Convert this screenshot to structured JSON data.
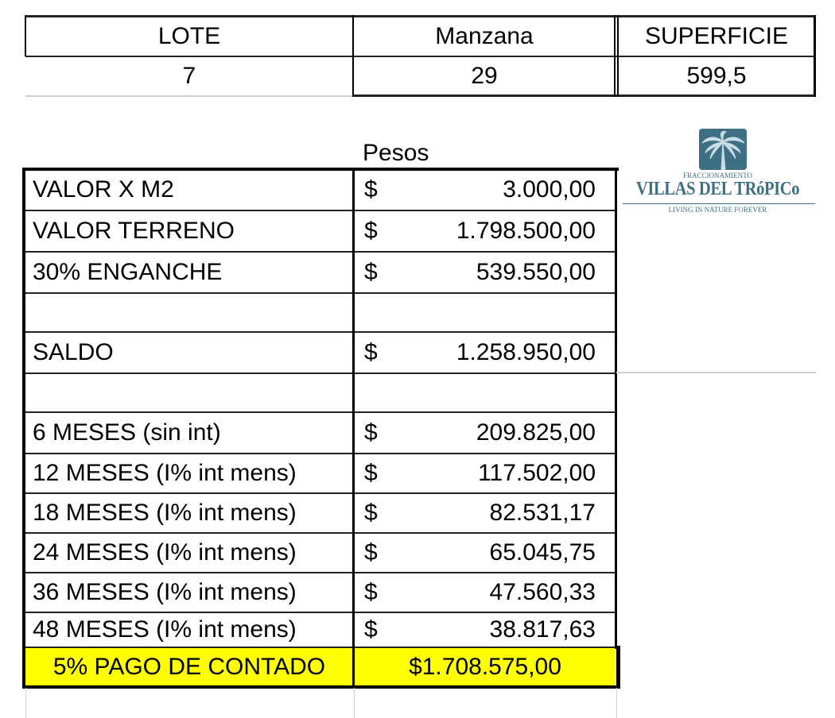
{
  "lot_table": {
    "headers": [
      "LOTE",
      "Manzana",
      "SUPERFICIE"
    ],
    "values": [
      "7",
      "29",
      "599,5"
    ]
  },
  "currency_label": "Pesos",
  "price_table": {
    "rows": [
      {
        "label": "VALOR X M2",
        "symbol": "$",
        "amount": "3.000,00"
      },
      {
        "label": "VALOR TERRENO",
        "symbol": "$",
        "amount": "1.798.500,00"
      },
      {
        "label": "30% ENGANCHE",
        "symbol": "$",
        "amount": "539.550,00"
      },
      {
        "label": "",
        "symbol": "",
        "amount": ""
      },
      {
        "label": "SALDO",
        "symbol": "$",
        "amount": "1.258.950,00"
      },
      {
        "label": "",
        "symbol": "",
        "amount": ""
      },
      {
        "label": "6 MESES (sin int)",
        "symbol": "$",
        "amount": "209.825,00"
      },
      {
        "label": "12 MESES (I% int mens)",
        "symbol": "$",
        "amount": "117.502,00"
      },
      {
        "label": "18 MESES (I% int mens)",
        "symbol": "$",
        "amount": "82.531,17"
      },
      {
        "label": "24 MESES (I% int mens)",
        "symbol": "$",
        "amount": "65.045,75"
      },
      {
        "label": "36 MESES (I% int mens)",
        "symbol": "$",
        "amount": "47.560,33"
      },
      {
        "label": "48 MESES (I% int mens)",
        "symbol": "$",
        "amount": "38.817,63"
      }
    ],
    "cash_payment": {
      "label": "5% PAGO DE CONTADO",
      "amount": "$1.708.575,00",
      "highlight_color": "#ffff00"
    }
  },
  "logo": {
    "subtitle": "FRACCIONAMIENTO",
    "name": "VILLAS DEL TRóPICo",
    "tagline": "LIVING IN NATURE FOREVER",
    "color": "#3f6f85",
    "icon": "palm-tree-icon"
  }
}
